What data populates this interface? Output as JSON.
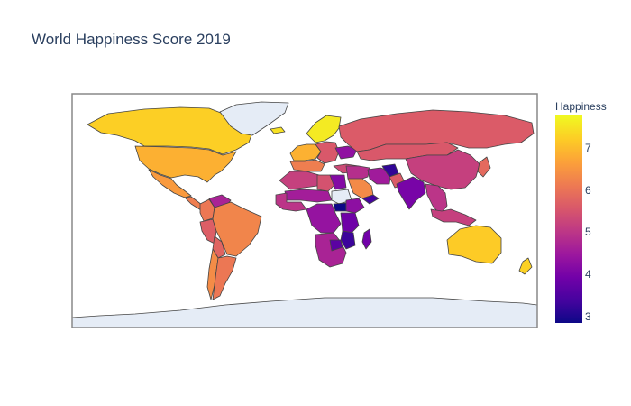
{
  "title": "World Happiness Score 2019",
  "map": {
    "type": "choropleth",
    "projection": "equirectangular",
    "no_data_color": "#e5ecf6",
    "coastline_color": "#444444",
    "frame_color": "#888888",
    "regions": [
      {
        "name": "Canada",
        "value": 7.28
      },
      {
        "name": "United States",
        "value": 6.89
      },
      {
        "name": "Mexico",
        "value": 6.6
      },
      {
        "name": "Central America",
        "value": 6.2
      },
      {
        "name": "Venezuela",
        "value": 4.7
      },
      {
        "name": "Colombia",
        "value": 6.1
      },
      {
        "name": "Peru",
        "value": 5.7
      },
      {
        "name": "Brazil",
        "value": 6.3
      },
      {
        "name": "Bolivia",
        "value": 5.8
      },
      {
        "name": "Chile",
        "value": 6.4
      },
      {
        "name": "Argentina",
        "value": 6.1
      },
      {
        "name": "Greenland",
        "value": null
      },
      {
        "name": "Iceland",
        "value": 7.49
      },
      {
        "name": "Scandinavia",
        "value": 7.6
      },
      {
        "name": "Western Europe",
        "value": 6.9
      },
      {
        "name": "Southern Europe",
        "value": 6.2
      },
      {
        "name": "Eastern Europe",
        "value": 5.6
      },
      {
        "name": "Ukraine",
        "value": 4.33
      },
      {
        "name": "Turkey",
        "value": 5.37
      },
      {
        "name": "Russia",
        "value": 5.65
      },
      {
        "name": "Kazakhstan & Mongolia",
        "value": 5.6
      },
      {
        "name": "China",
        "value": 5.19
      },
      {
        "name": "North Africa",
        "value": 5.2
      },
      {
        "name": "Libya",
        "value": 5.5
      },
      {
        "name": "Egypt",
        "value": 4.17
      },
      {
        "name": "Sahel",
        "value": 4.6
      },
      {
        "name": "West Africa",
        "value": 5.0
      },
      {
        "name": "Sudan",
        "value": null
      },
      {
        "name": "South Sudan",
        "value": 2.85
      },
      {
        "name": "Ethiopia",
        "value": 4.29
      },
      {
        "name": "Central Africa",
        "value": 4.4
      },
      {
        "name": "East Africa",
        "value": 3.9
      },
      {
        "name": "Tanzania & Malawi",
        "value": 3.3
      },
      {
        "name": "Southern Africa",
        "value": 4.7
      },
      {
        "name": "Zimbabwe",
        "value": 3.66
      },
      {
        "name": "Madagascar",
        "value": 3.93
      },
      {
        "name": "Middle East",
        "value": 4.9
      },
      {
        "name": "Saudi Arabia",
        "value": 6.38
      },
      {
        "name": "Yemen",
        "value": 3.38
      },
      {
        "name": "Iran",
        "value": 4.55
      },
      {
        "name": "Afghanistan",
        "value": 3.2
      },
      {
        "name": "Pakistan",
        "value": 5.65
      },
      {
        "name": "India",
        "value": 4.02
      },
      {
        "name": "Southeast Asia",
        "value": 5.0
      },
      {
        "name": "Indonesia",
        "value": 5.19
      },
      {
        "name": "Japan",
        "value": 5.89
      },
      {
        "name": "Australia",
        "value": 7.23
      },
      {
        "name": "New Zealand",
        "value": 7.31
      },
      {
        "name": "Antarctica",
        "value": null
      }
    ]
  },
  "colorbar": {
    "title": "Happiness",
    "min": 2.85,
    "max": 7.77,
    "ticks": [
      3,
      4,
      5,
      6,
      7
    ],
    "colors": [
      "#0d0887",
      "#46039f",
      "#7201a8",
      "#9c179e",
      "#bd3786",
      "#d8576b",
      "#ed7953",
      "#fb9f3a",
      "#fdca26",
      "#f0f921"
    ]
  }
}
